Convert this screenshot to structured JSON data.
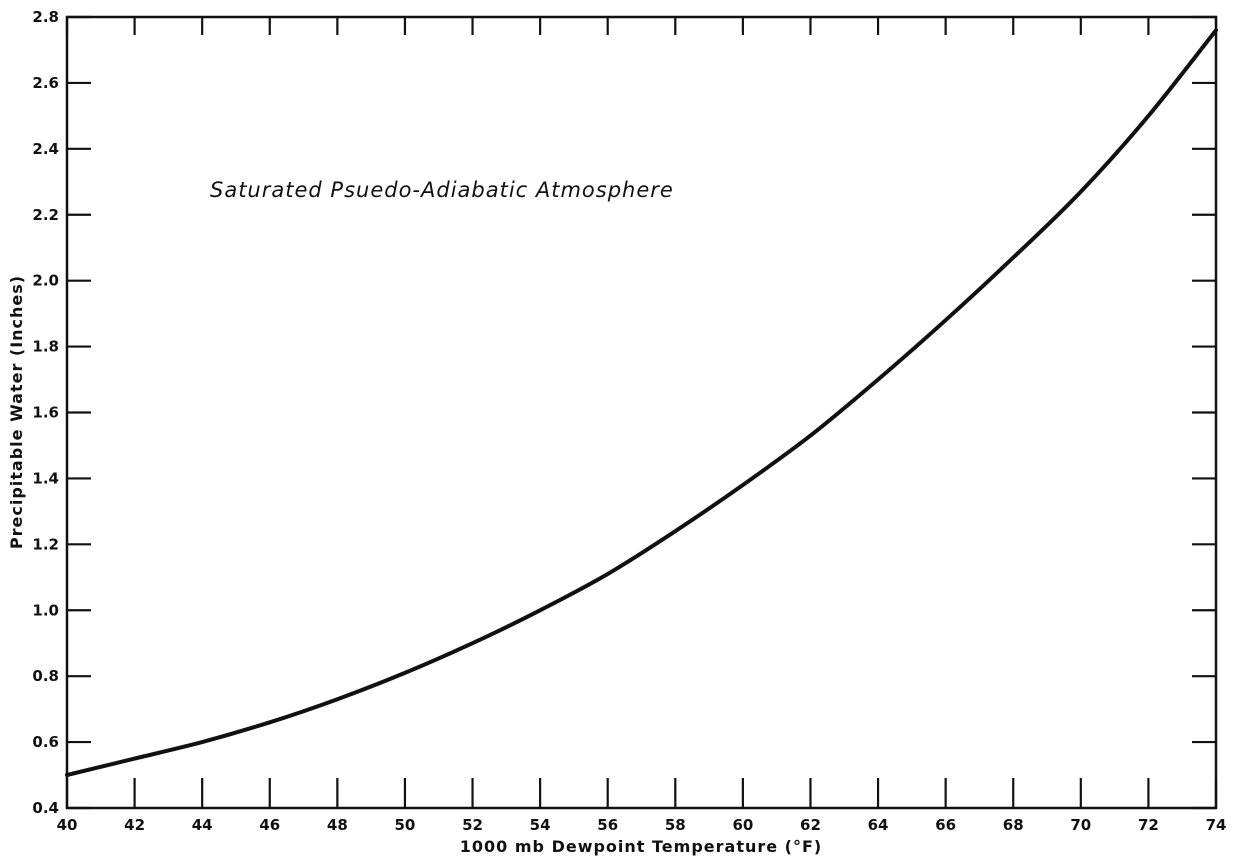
{
  "chart_data": {
    "type": "line",
    "title": "",
    "xlabel": "1000 mb Dewpoint Temperature (°F)",
    "ylabel": "Precipitable Water (Inches)",
    "annotation": "Saturated Psuedo-Adiabatic Atmosphere",
    "xlim": [
      40,
      74
    ],
    "ylim": [
      0.4,
      2.8
    ],
    "x_ticks": [
      40,
      42,
      44,
      46,
      48,
      50,
      52,
      54,
      56,
      58,
      60,
      62,
      64,
      66,
      68,
      70,
      72,
      74
    ],
    "x_tick_labels": [
      "40",
      "42",
      "44",
      "46",
      "48",
      "50",
      "52",
      "54",
      "56",
      "58",
      "60",
      "62",
      "64",
      "66",
      "68",
      "70",
      "72",
      "74"
    ],
    "y_ticks": [
      0.4,
      0.6,
      0.8,
      1.0,
      1.2,
      1.4,
      1.6,
      1.8,
      2.0,
      2.2,
      2.4,
      2.6,
      2.8
    ],
    "y_tick_labels": [
      "0.4",
      "0.6",
      "0.8",
      "1.0",
      "1.2",
      "1.4",
      "1.6",
      "1.8",
      "2.0",
      "2.2",
      "2.4",
      "2.6",
      "2.8"
    ],
    "grid": false,
    "series": [
      {
        "x": [
          40,
          42,
          44,
          46,
          48,
          50,
          52,
          54,
          56,
          58,
          60,
          62,
          64,
          66,
          68,
          70,
          72,
          74
        ],
        "values": [
          0.5,
          0.55,
          0.6,
          0.66,
          0.73,
          0.81,
          0.9,
          1.0,
          1.11,
          1.24,
          1.38,
          1.53,
          1.7,
          1.88,
          2.07,
          2.27,
          2.5,
          2.76
        ]
      }
    ],
    "colors": {
      "line": "#111111",
      "axis": "#111111"
    }
  }
}
